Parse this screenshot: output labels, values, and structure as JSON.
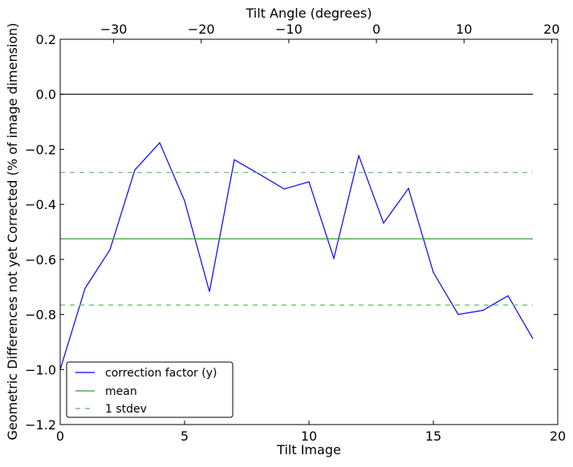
{
  "chart_data": {
    "type": "line",
    "xlabel": "Tilt Image",
    "ylabel": "Geometric Differences not yet Corrected (% of image dimension)",
    "top_xlabel": "Tilt Angle (degrees)",
    "xlim": [
      0,
      20
    ],
    "ylim": [
      -1.2,
      0.2
    ],
    "top_xlim": [
      -36.1,
      20.7
    ],
    "x_ticks": [
      0,
      5,
      10,
      15,
      20
    ],
    "x_tick_labels": [
      "0",
      "5",
      "10",
      "15",
      "20"
    ],
    "y_ticks": [
      0.2,
      0.0,
      -0.2,
      -0.4,
      -0.6,
      -0.8,
      -1.0,
      -1.2
    ],
    "y_tick_labels": [
      "0.2",
      "0.0",
      "−0.2",
      "−0.4",
      "−0.6",
      "−0.8",
      "−1.0",
      "−1.2"
    ],
    "top_x_ticks": [
      -30,
      -20,
      -10,
      0,
      10,
      20
    ],
    "top_x_tick_labels": [
      "−30",
      "−20",
      "−10",
      "0",
      "10",
      "20"
    ],
    "grid": false,
    "legend_position": "lower-left",
    "series": [
      {
        "name": "correction factor (y)",
        "color": "#0000ff",
        "style": "solid",
        "x": [
          0,
          1,
          2,
          3,
          4,
          5,
          6,
          7,
          8,
          9,
          10,
          11,
          12,
          13,
          14,
          15,
          16,
          17,
          18,
          19
        ],
        "y": [
          -1.0,
          -0.705,
          -0.565,
          -0.275,
          -0.176,
          -0.387,
          -0.717,
          -0.238,
          -0.29,
          -0.344,
          -0.318,
          -0.596,
          -0.223,
          -0.468,
          -0.342,
          -0.647,
          -0.8,
          -0.785,
          -0.732,
          -0.888
        ]
      },
      {
        "name": "mean",
        "color": "#2ca02c",
        "style": "solid",
        "x": [
          0,
          19
        ],
        "y": [
          -0.525,
          -0.525
        ]
      },
      {
        "name": "1 stdev",
        "color": "#5fb85f",
        "style": "dashed",
        "x": [
          0,
          19
        ],
        "y": [
          -0.284,
          -0.284
        ]
      },
      {
        "name": "1 stdev (lower)",
        "color": "#5fb85f",
        "style": "dashed",
        "x": [
          0,
          19
        ],
        "y": [
          -0.766,
          -0.766
        ],
        "in_legend": false
      },
      {
        "name": "zero",
        "color": "#000000",
        "style": "solid",
        "x": [
          0,
          19
        ],
        "y": [
          0,
          0
        ],
        "in_legend": false
      }
    ],
    "legend": [
      "correction factor (y)",
      "mean",
      "1 stdev"
    ]
  }
}
